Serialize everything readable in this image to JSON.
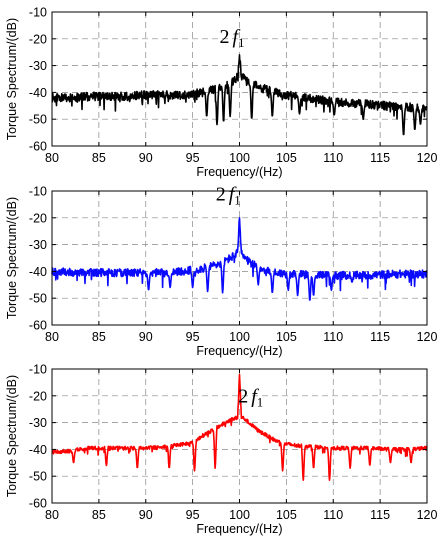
{
  "chart_data": [
    {
      "type": "line",
      "color": "#000000",
      "xlabel": "Frequency/(Hz)",
      "ylabel": "Torque Spectrum/(dB)",
      "xlim": [
        80,
        120
      ],
      "ylim": [
        -60,
        -10
      ],
      "xticks": [
        "80",
        "85",
        "90",
        "95",
        "100",
        "105",
        "110",
        "115",
        "120"
      ],
      "yticks": [
        "-10",
        "-20",
        "-30",
        "-40",
        "-50",
        "-60"
      ],
      "grid": "dashed",
      "annotation": {
        "base": "2",
        "var": "f",
        "sub": "1",
        "x": 99.2,
        "y": -21.5
      },
      "series": [
        {
          "x": [
            80,
            82,
            84,
            86,
            88,
            90,
            92,
            94,
            95,
            96,
            97,
            97.5,
            98,
            98.5,
            99,
            99.5,
            99.8,
            100,
            100.2,
            100.5,
            101,
            101.5,
            102,
            103,
            104,
            105,
            106,
            107,
            108,
            109,
            110,
            112,
            114,
            116,
            118,
            120
          ],
          "y": [
            -42,
            -42,
            -41.5,
            -41.5,
            -41.5,
            -41,
            -41,
            -41,
            -40.5,
            -40,
            -39,
            -38.5,
            -38,
            -37,
            -36.5,
            -35.5,
            -34,
            -26,
            -34,
            -35,
            -36.5,
            -37,
            -38,
            -39,
            -40,
            -41,
            -41.5,
            -42,
            -42.5,
            -43,
            -43.5,
            -44,
            -44.5,
            -45,
            -45.5,
            -46
          ],
          "noise": 1.6,
          "dips": [
            [
              96.5,
              -49
            ],
            [
              97.6,
              -52
            ],
            [
              98.3,
              -51
            ],
            [
              99.0,
              -49
            ],
            [
              101.3,
              -50
            ],
            [
              103.5,
              -49
            ],
            [
              106.4,
              -48
            ],
            [
              110.1,
              -48.5
            ],
            [
              113.2,
              -50
            ],
            [
              117.5,
              -56
            ],
            [
              118.7,
              -54
            ],
            [
              119.3,
              -52
            ]
          ]
        }
      ]
    },
    {
      "type": "line",
      "color": "#0a0aff",
      "xlabel": "Frequency/(Hz)",
      "ylabel": "Torque Spectrum/(dB)",
      "xlim": [
        80,
        120
      ],
      "ylim": [
        -60,
        -10
      ],
      "xticks": [
        "80",
        "85",
        "90",
        "95",
        "100",
        "105",
        "110",
        "115",
        "120"
      ],
      "yticks": [
        "-10",
        "-20",
        "-30",
        "-40",
        "-50",
        "-60"
      ],
      "grid": "dashed",
      "annotation": {
        "base": "2",
        "var": "f",
        "sub": "1",
        "x": 98.8,
        "y": -13.5
      },
      "series": [
        {
          "x": [
            80,
            84,
            88,
            90,
            92,
            94,
            95,
            96,
            97,
            98,
            98.5,
            99,
            99.5,
            99.8,
            100,
            100.2,
            100.5,
            101,
            102,
            103,
            104,
            105,
            106,
            108,
            110,
            112,
            114,
            116,
            118,
            120
          ],
          "y": [
            -40,
            -40.5,
            -40.5,
            -40.5,
            -40.5,
            -40,
            -39.5,
            -39,
            -38,
            -37,
            -36,
            -35,
            -34,
            -33,
            -20,
            -33,
            -35,
            -36.5,
            -38.5,
            -40,
            -40.5,
            -41,
            -41,
            -41.5,
            -41.5,
            -41.5,
            -41.5,
            -41,
            -41,
            -41
          ],
          "noise": 1.5,
          "dips": [
            [
              90.3,
              -47
            ],
            [
              92.6,
              -46
            ],
            [
              95.0,
              -46
            ],
            [
              96.6,
              -47.5
            ],
            [
              98.2,
              -48
            ],
            [
              102.0,
              -45
            ],
            [
              103.5,
              -48
            ],
            [
              105.2,
              -47
            ],
            [
              106.2,
              -49
            ],
            [
              107.5,
              -51
            ],
            [
              107.9,
              -49
            ],
            [
              109.8,
              -47
            ],
            [
              112.0,
              -44
            ]
          ]
        }
      ]
    },
    {
      "type": "line",
      "color": "#ff0000",
      "xlabel": "Frequency/(Hz)",
      "ylabel": "Torque Spectrum/(dB)",
      "xlim": [
        80,
        120
      ],
      "ylim": [
        -60,
        -10
      ],
      "xticks": [
        "80",
        "85",
        "90",
        "95",
        "100",
        "105",
        "110",
        "115",
        "120"
      ],
      "yticks": [
        "-10",
        "-20",
        "-30",
        "-40",
        "-50",
        "-60"
      ],
      "grid": "dashed",
      "annotation": {
        "base": "2",
        "var": "f",
        "sub": "1",
        "x": 101.2,
        "y": -22.5
      },
      "series": [
        {
          "x": [
            80,
            82,
            84,
            86,
            88,
            90,
            92,
            94,
            95,
            96,
            97,
            98,
            99,
            99.5,
            99.8,
            100,
            100.2,
            100.5,
            101,
            102,
            103,
            104,
            105,
            106,
            108,
            110,
            112,
            114,
            116,
            118,
            120
          ],
          "y": [
            -41,
            -40.5,
            -39.5,
            -39.5,
            -39.5,
            -39.5,
            -39,
            -38,
            -37.5,
            -35,
            -33,
            -31,
            -29,
            -28.5,
            -28,
            -12,
            -28,
            -28.5,
            -30,
            -33,
            -35,
            -37,
            -38,
            -38.5,
            -39,
            -39.5,
            -39.5,
            -39.5,
            -40,
            -40,
            -39.5
          ],
          "noise": 0.7,
          "dips": [
            [
              82.3,
              -45
            ],
            [
              85.8,
              -46
            ],
            [
              89.1,
              -47
            ],
            [
              92.5,
              -47
            ],
            [
              95.2,
              -48
            ],
            [
              97.4,
              -47
            ],
            [
              104.6,
              -48
            ],
            [
              106.8,
              -51.5
            ],
            [
              107.9,
              -47
            ],
            [
              109.6,
              -51.5
            ],
            [
              111.8,
              -47
            ],
            [
              113.9,
              -46
            ],
            [
              116.1,
              -45
            ],
            [
              118.3,
              -45
            ]
          ]
        }
      ]
    }
  ]
}
